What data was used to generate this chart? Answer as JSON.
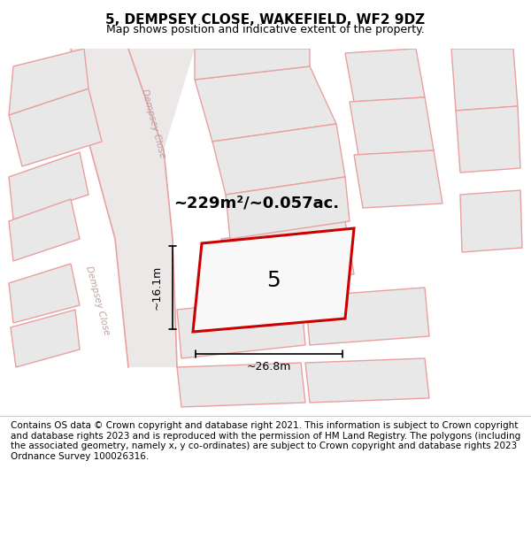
{
  "title": "5, DEMPSEY CLOSE, WAKEFIELD, WF2 9DZ",
  "subtitle": "Map shows position and indicative extent of the property.",
  "footer": "Contains OS data © Crown copyright and database right 2021. This information is subject to Crown copyright and database rights 2023 and is reproduced with the permission of HM Land Registry. The polygons (including the associated geometry, namely x, y co-ordinates) are subject to Crown copyright and database rights 2023 Ordnance Survey 100026316.",
  "map_bg": "#f5f5f5",
  "road_color": "#f0f0f0",
  "building_fill": "#e8e8e8",
  "building_edge": "#e8a0a0",
  "highlight_fill": "#f0f0f0",
  "highlight_edge": "#cc0000",
  "road_line_color": "#e8a0a0",
  "area_label": "~229m²/~0.057ac.",
  "plot_label": "5",
  "dim_h": "~16.1m",
  "dim_w": "~26.8m",
  "road_label1": "Dempsey Close",
  "road_label2": "Dempsey Close",
  "title_fontsize": 11,
  "subtitle_fontsize": 9,
  "footer_fontsize": 7.5
}
